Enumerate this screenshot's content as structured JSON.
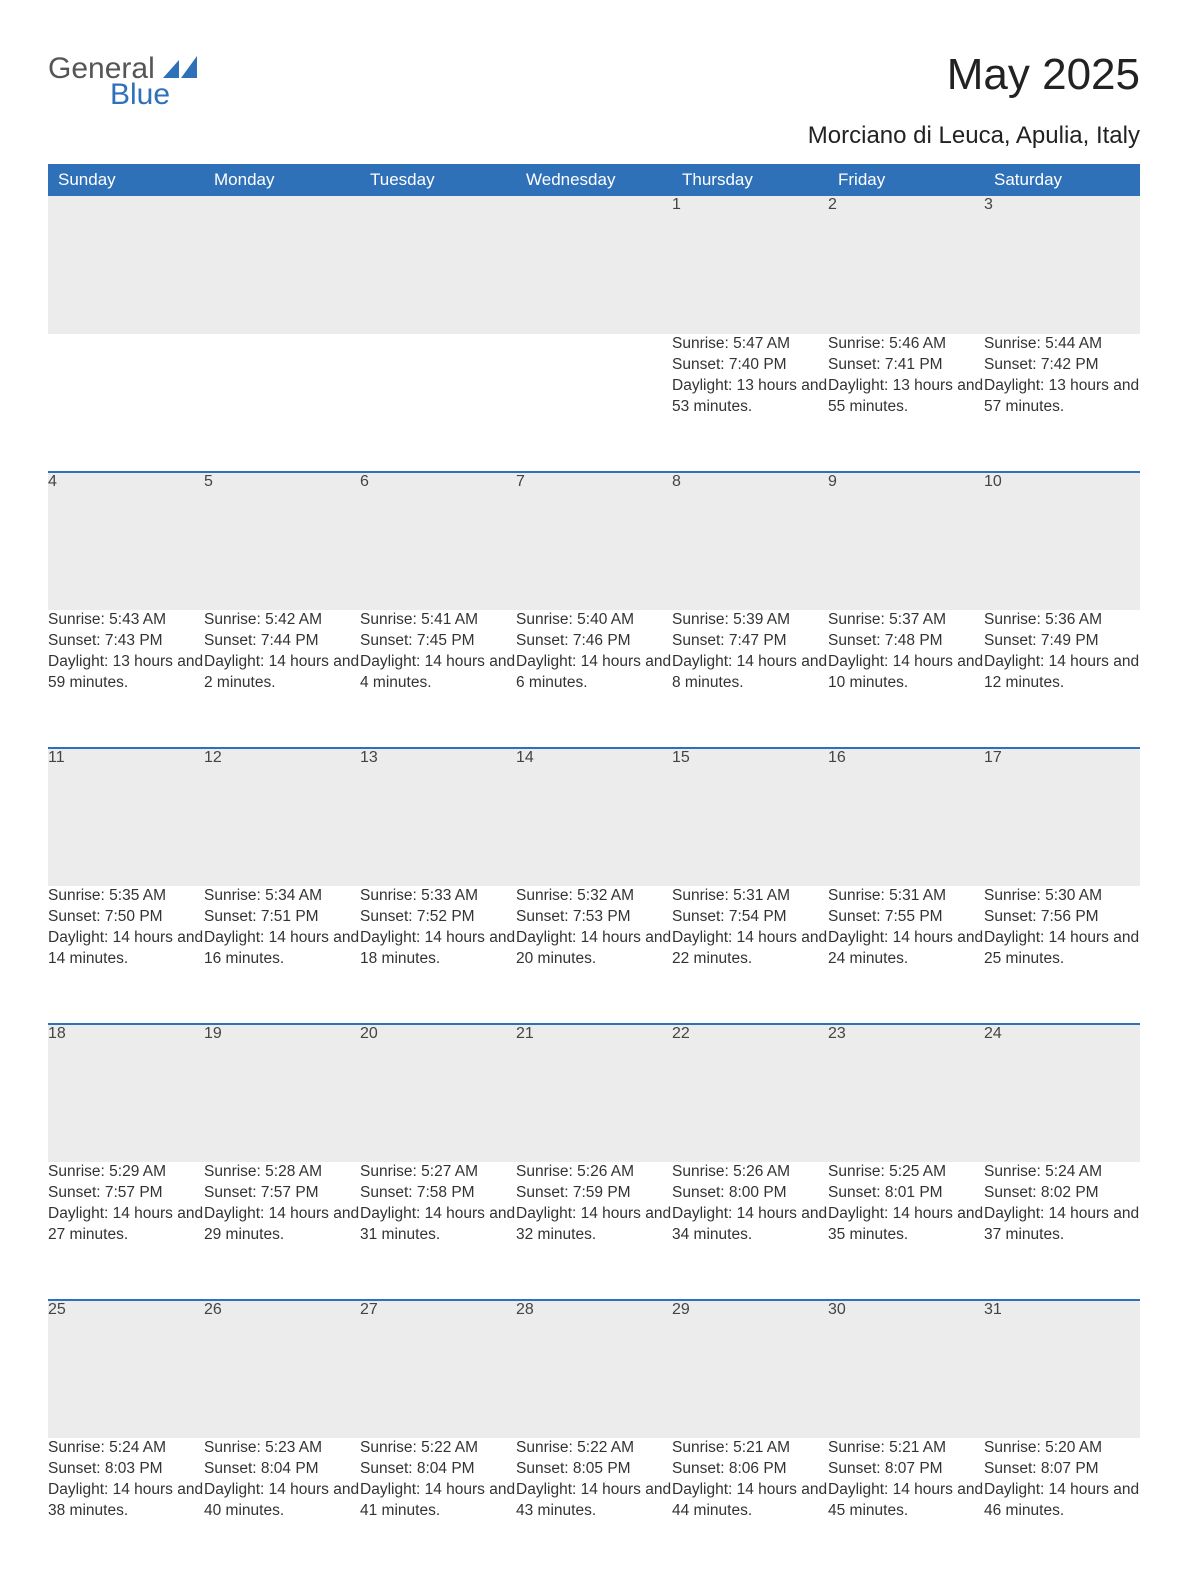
{
  "brand": {
    "word1": "General",
    "word2": "Blue",
    "flag_color": "#2f71b8"
  },
  "title": "May 2025",
  "location": "Morciano di Leuca, Apulia, Italy",
  "colors": {
    "header_bg": "#2f71b8",
    "header_text": "#ffffff",
    "daynum_bg": "#ececec",
    "border_top": "#2f71b8",
    "body_text": "#333333"
  },
  "fonts": {
    "title_size": 44,
    "location_size": 24,
    "header_size": 17,
    "cell_size": 15.5
  },
  "day_headers": [
    "Sunday",
    "Monday",
    "Tuesday",
    "Wednesday",
    "Thursday",
    "Friday",
    "Saturday"
  ],
  "weeks": [
    [
      null,
      null,
      null,
      null,
      {
        "n": "1",
        "sr": "Sunrise: 5:47 AM",
        "ss": "Sunset: 7:40 PM",
        "dl": "Daylight: 13 hours and 53 minutes."
      },
      {
        "n": "2",
        "sr": "Sunrise: 5:46 AM",
        "ss": "Sunset: 7:41 PM",
        "dl": "Daylight: 13 hours and 55 minutes."
      },
      {
        "n": "3",
        "sr": "Sunrise: 5:44 AM",
        "ss": "Sunset: 7:42 PM",
        "dl": "Daylight: 13 hours and 57 minutes."
      }
    ],
    [
      {
        "n": "4",
        "sr": "Sunrise: 5:43 AM",
        "ss": "Sunset: 7:43 PM",
        "dl": "Daylight: 13 hours and 59 minutes."
      },
      {
        "n": "5",
        "sr": "Sunrise: 5:42 AM",
        "ss": "Sunset: 7:44 PM",
        "dl": "Daylight: 14 hours and 2 minutes."
      },
      {
        "n": "6",
        "sr": "Sunrise: 5:41 AM",
        "ss": "Sunset: 7:45 PM",
        "dl": "Daylight: 14 hours and 4 minutes."
      },
      {
        "n": "7",
        "sr": "Sunrise: 5:40 AM",
        "ss": "Sunset: 7:46 PM",
        "dl": "Daylight: 14 hours and 6 minutes."
      },
      {
        "n": "8",
        "sr": "Sunrise: 5:39 AM",
        "ss": "Sunset: 7:47 PM",
        "dl": "Daylight: 14 hours and 8 minutes."
      },
      {
        "n": "9",
        "sr": "Sunrise: 5:37 AM",
        "ss": "Sunset: 7:48 PM",
        "dl": "Daylight: 14 hours and 10 minutes."
      },
      {
        "n": "10",
        "sr": "Sunrise: 5:36 AM",
        "ss": "Sunset: 7:49 PM",
        "dl": "Daylight: 14 hours and 12 minutes."
      }
    ],
    [
      {
        "n": "11",
        "sr": "Sunrise: 5:35 AM",
        "ss": "Sunset: 7:50 PM",
        "dl": "Daylight: 14 hours and 14 minutes."
      },
      {
        "n": "12",
        "sr": "Sunrise: 5:34 AM",
        "ss": "Sunset: 7:51 PM",
        "dl": "Daylight: 14 hours and 16 minutes."
      },
      {
        "n": "13",
        "sr": "Sunrise: 5:33 AM",
        "ss": "Sunset: 7:52 PM",
        "dl": "Daylight: 14 hours and 18 minutes."
      },
      {
        "n": "14",
        "sr": "Sunrise: 5:32 AM",
        "ss": "Sunset: 7:53 PM",
        "dl": "Daylight: 14 hours and 20 minutes."
      },
      {
        "n": "15",
        "sr": "Sunrise: 5:31 AM",
        "ss": "Sunset: 7:54 PM",
        "dl": "Daylight: 14 hours and 22 minutes."
      },
      {
        "n": "16",
        "sr": "Sunrise: 5:31 AM",
        "ss": "Sunset: 7:55 PM",
        "dl": "Daylight: 14 hours and 24 minutes."
      },
      {
        "n": "17",
        "sr": "Sunrise: 5:30 AM",
        "ss": "Sunset: 7:56 PM",
        "dl": "Daylight: 14 hours and 25 minutes."
      }
    ],
    [
      {
        "n": "18",
        "sr": "Sunrise: 5:29 AM",
        "ss": "Sunset: 7:57 PM",
        "dl": "Daylight: 14 hours and 27 minutes."
      },
      {
        "n": "19",
        "sr": "Sunrise: 5:28 AM",
        "ss": "Sunset: 7:57 PM",
        "dl": "Daylight: 14 hours and 29 minutes."
      },
      {
        "n": "20",
        "sr": "Sunrise: 5:27 AM",
        "ss": "Sunset: 7:58 PM",
        "dl": "Daylight: 14 hours and 31 minutes."
      },
      {
        "n": "21",
        "sr": "Sunrise: 5:26 AM",
        "ss": "Sunset: 7:59 PM",
        "dl": "Daylight: 14 hours and 32 minutes."
      },
      {
        "n": "22",
        "sr": "Sunrise: 5:26 AM",
        "ss": "Sunset: 8:00 PM",
        "dl": "Daylight: 14 hours and 34 minutes."
      },
      {
        "n": "23",
        "sr": "Sunrise: 5:25 AM",
        "ss": "Sunset: 8:01 PM",
        "dl": "Daylight: 14 hours and 35 minutes."
      },
      {
        "n": "24",
        "sr": "Sunrise: 5:24 AM",
        "ss": "Sunset: 8:02 PM",
        "dl": "Daylight: 14 hours and 37 minutes."
      }
    ],
    [
      {
        "n": "25",
        "sr": "Sunrise: 5:24 AM",
        "ss": "Sunset: 8:03 PM",
        "dl": "Daylight: 14 hours and 38 minutes."
      },
      {
        "n": "26",
        "sr": "Sunrise: 5:23 AM",
        "ss": "Sunset: 8:04 PM",
        "dl": "Daylight: 14 hours and 40 minutes."
      },
      {
        "n": "27",
        "sr": "Sunrise: 5:22 AM",
        "ss": "Sunset: 8:04 PM",
        "dl": "Daylight: 14 hours and 41 minutes."
      },
      {
        "n": "28",
        "sr": "Sunrise: 5:22 AM",
        "ss": "Sunset: 8:05 PM",
        "dl": "Daylight: 14 hours and 43 minutes."
      },
      {
        "n": "29",
        "sr": "Sunrise: 5:21 AM",
        "ss": "Sunset: 8:06 PM",
        "dl": "Daylight: 14 hours and 44 minutes."
      },
      {
        "n": "30",
        "sr": "Sunrise: 5:21 AM",
        "ss": "Sunset: 8:07 PM",
        "dl": "Daylight: 14 hours and 45 minutes."
      },
      {
        "n": "31",
        "sr": "Sunrise: 5:20 AM",
        "ss": "Sunset: 8:07 PM",
        "dl": "Daylight: 14 hours and 46 minutes."
      }
    ]
  ]
}
